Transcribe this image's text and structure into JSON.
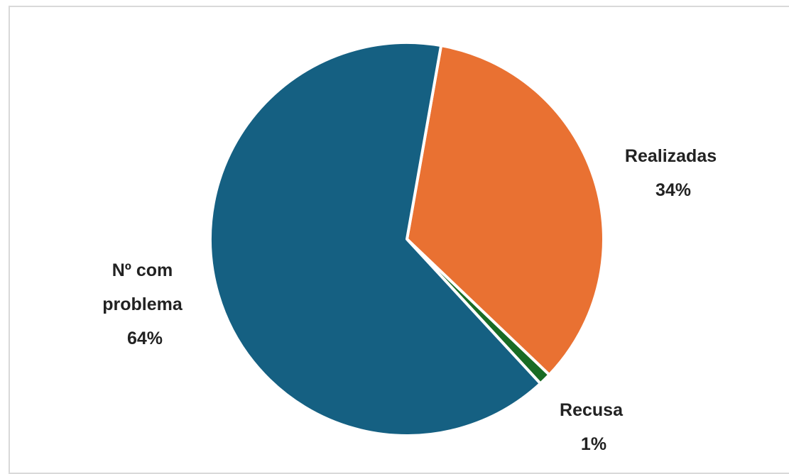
{
  "chart_data": {
    "type": "pie",
    "title": "",
    "slices": [
      {
        "name": "Realizadas",
        "value": 34,
        "label": "34%",
        "color": "#E97132"
      },
      {
        "name": "Recusa",
        "value": 1,
        "label": "1%",
        "color": "#196B24"
      },
      {
        "name": "Nº com problema",
        "value": 64,
        "label": "64%",
        "color": "#156082"
      }
    ],
    "start_angle_deg": 10,
    "direction": "clockwise",
    "legend": "none",
    "label_style": "outside, category name and percentage",
    "slice_border_color": "#ffffff"
  }
}
